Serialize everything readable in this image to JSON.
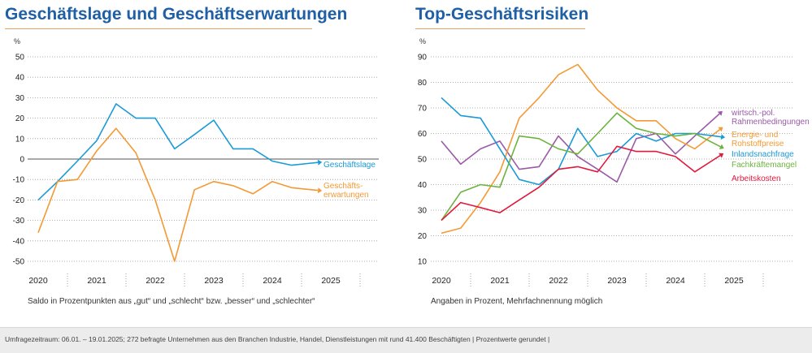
{
  "colors": {
    "title": "#1f5fa6",
    "rule": "#e8a060",
    "blue": "#1a9ad6",
    "orange": "#f39a34",
    "purple": "#9a5aa8",
    "green": "#6db33f",
    "red": "#e2183c"
  },
  "chart_data": [
    {
      "type": "line",
      "title": "Geschäftslage und Geschäftserwartungen",
      "unit_label": "%",
      "ylim": [
        -50,
        50
      ],
      "yticks": [
        50,
        40,
        30,
        20,
        10,
        0,
        -10,
        -20,
        -30,
        -40,
        -50
      ],
      "year_labels": [
        "2020",
        "2021",
        "2022",
        "2023",
        "2024",
        "2025"
      ],
      "xlim": [
        2020,
        2025.5
      ],
      "caption": "Saldo in Prozentpunkten aus „gut“ und „schlecht“ bzw. „besser“ und „schlechter“",
      "grid": "dotted horizontal",
      "series": [
        {
          "name": "Geschäftslage",
          "color": "#1a9ad6",
          "x": [
            2020.0,
            2020.33,
            2020.67,
            2021.0,
            2021.33,
            2021.67,
            2022.0,
            2022.33,
            2022.67,
            2023.0,
            2023.33,
            2023.67,
            2024.0,
            2024.33,
            2024.67
          ],
          "values": [
            -20,
            -11,
            -1,
            9,
            27,
            20,
            20,
            5,
            12,
            19,
            5,
            5,
            -1,
            -3,
            -2
          ]
        },
        {
          "name": "Geschäfts-\nerwartungen",
          "color": "#f39a34",
          "x": [
            2020.0,
            2020.33,
            2020.67,
            2021.0,
            2021.33,
            2021.67,
            2022.0,
            2022.33,
            2022.67,
            2023.0,
            2023.33,
            2023.67,
            2024.0,
            2024.33,
            2024.67
          ],
          "values": [
            -36,
            -11,
            -10,
            4,
            15,
            3,
            -20,
            -50,
            -15,
            -11,
            -13,
            -17,
            -11,
            -14,
            -15
          ]
        }
      ]
    },
    {
      "type": "line",
      "title": "Top-Geschäftsrisiken",
      "unit_label": "%",
      "ylim": [
        10,
        90
      ],
      "yticks": [
        90,
        80,
        70,
        60,
        50,
        40,
        30,
        20,
        10
      ],
      "year_labels": [
        "2020",
        "2021",
        "2022",
        "2023",
        "2024",
        "2025"
      ],
      "xlim": [
        2020,
        2025.5
      ],
      "caption": "Angaben in Prozent, Mehrfachnennung möglich",
      "grid": "dotted horizontal",
      "series": [
        {
          "name": "wirtsch.-pol.\nRahmenbedingungen",
          "color": "#9a5aa8",
          "x": [
            2020.0,
            2020.33,
            2020.67,
            2021.0,
            2021.33,
            2021.67,
            2022.0,
            2022.33,
            2022.67,
            2023.0,
            2023.33,
            2023.67,
            2024.0,
            2024.33,
            2024.67
          ],
          "values": [
            57,
            48,
            54,
            57,
            46,
            47,
            59,
            51,
            46,
            41,
            58,
            60,
            52,
            59,
            66
          ]
        },
        {
          "name": "Energie- und\nRohstoffpreise",
          "color": "#f39a34",
          "x": [
            2020.0,
            2020.33,
            2020.67,
            2021.0,
            2021.33,
            2021.67,
            2022.0,
            2022.33,
            2022.67,
            2023.0,
            2023.33,
            2023.67,
            2024.0,
            2024.33,
            2024.67
          ],
          "values": [
            21,
            23,
            33,
            45,
            66,
            74,
            83,
            87,
            77,
            70,
            65,
            65,
            58,
            54,
            60
          ]
        },
        {
          "name": "Inlandsnachfrage",
          "color": "#1a9ad6",
          "x": [
            2020.0,
            2020.33,
            2020.67,
            2021.0,
            2021.33,
            2021.67,
            2022.0,
            2022.33,
            2022.67,
            2023.0,
            2023.33,
            2023.67,
            2024.0,
            2024.33,
            2024.67
          ],
          "values": [
            74,
            67,
            66,
            54,
            42,
            40,
            46,
            62,
            51,
            53,
            60,
            57,
            60,
            60,
            59
          ]
        },
        {
          "name": "Fachkräftemangel",
          "color": "#6db33f",
          "x": [
            2020.0,
            2020.33,
            2020.67,
            2021.0,
            2021.33,
            2021.67,
            2022.0,
            2022.33,
            2022.67,
            2023.0,
            2023.33,
            2023.67,
            2024.0,
            2024.33,
            2024.67
          ],
          "values": [
            26,
            37,
            40,
            39,
            59,
            58,
            54,
            52,
            60,
            68,
            62,
            60,
            59,
            60,
            56
          ]
        },
        {
          "name": "Arbeitskosten",
          "color": "#e2183c",
          "x": [
            2020.0,
            2020.33,
            2020.67,
            2021.0,
            2021.33,
            2021.67,
            2022.0,
            2022.33,
            2022.67,
            2023.0,
            2023.33,
            2023.67,
            2024.0,
            2024.33,
            2024.67
          ],
          "values": [
            26,
            33,
            31,
            29,
            34,
            39,
            46,
            47,
            45,
            55,
            53,
            53,
            51,
            45,
            50
          ]
        }
      ]
    }
  ],
  "footer_text": "Umfragezeitraum: 06.01. – 19.01.2025; 272 befragte Unternehmen aus den Branchen Industrie, Handel, Dienstleistungen mit rund 41.400 Beschäftigten  |  Prozentwerte gerundet  |"
}
